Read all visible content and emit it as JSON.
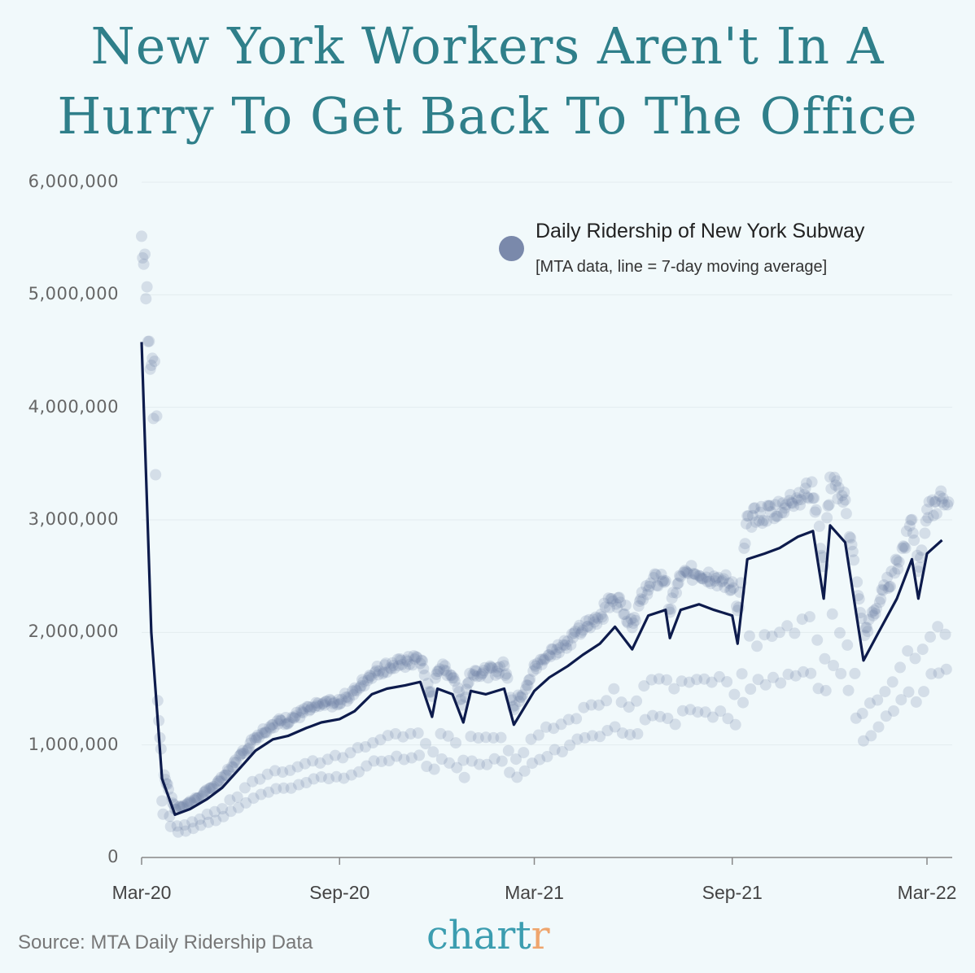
{
  "title": "New York Workers Aren't In A Hurry To Get Back To The Office",
  "title_lines": [
    "New York Workers Aren't In A",
    "Hurry To Get Back To The Office"
  ],
  "legend": {
    "title": "Daily Ridership of New York Subway",
    "subtitle": "[MTA data, line = 7-day moving average]",
    "marker_color": "#7a89ab"
  },
  "footer": {
    "source": "Source: MTA Daily Ridership Data",
    "brand_main": "chart",
    "brand_accent": "r"
  },
  "colors": {
    "title": "#2f7f8a",
    "line": "#0d1b4c",
    "dots": "#6f7fa6",
    "background": "#f1f9fb",
    "brand": "#3c9db0",
    "brand_accent": "#efa56d"
  },
  "chart_data": {
    "type": "line",
    "title": "New York Workers Aren't In A Hurry To Get Back To The Office",
    "xlabel": "",
    "ylabel": "",
    "ylim": [
      0,
      6000000
    ],
    "yticks": [
      "0",
      "1,000,000",
      "2,000,000",
      "3,000,000",
      "4,000,000",
      "5,000,000",
      "6,000,000"
    ],
    "xticks": [
      "Mar-20",
      "Sep-20",
      "Mar-21",
      "Sep-21",
      "Mar-22"
    ],
    "grid": "horizontal",
    "legend_position": "top-right",
    "series": [
      {
        "name": "7-day moving average",
        "style": "line",
        "x": [
          "2020-03-01",
          "2020-03-10",
          "2020-03-20",
          "2020-04-01",
          "2020-04-15",
          "2020-05-01",
          "2020-05-15",
          "2020-06-01",
          "2020-06-15",
          "2020-07-01",
          "2020-07-15",
          "2020-08-01",
          "2020-08-15",
          "2020-09-01",
          "2020-09-15",
          "2020-10-01",
          "2020-10-15",
          "2020-11-01",
          "2020-11-15",
          "2020-11-26",
          "2020-12-01",
          "2020-12-15",
          "2020-12-25",
          "2021-01-01",
          "2021-01-15",
          "2021-02-01",
          "2021-02-10",
          "2021-03-01",
          "2021-03-15",
          "2021-04-01",
          "2021-04-15",
          "2021-05-01",
          "2021-05-15",
          "2021-05-31",
          "2021-06-15",
          "2021-07-01",
          "2021-07-05",
          "2021-07-15",
          "2021-08-01",
          "2021-08-15",
          "2021-09-01",
          "2021-09-06",
          "2021-09-15",
          "2021-10-01",
          "2021-10-15",
          "2021-11-01",
          "2021-11-15",
          "2021-11-25",
          "2021-12-01",
          "2021-12-15",
          "2022-01-01",
          "2022-01-15",
          "2022-02-01",
          "2022-02-15",
          "2022-02-21",
          "2022-03-01",
          "2022-03-15"
        ],
        "values": [
          4580000,
          2000000,
          700000,
          380000,
          430000,
          520000,
          620000,
          800000,
          950000,
          1050000,
          1080000,
          1150000,
          1200000,
          1230000,
          1300000,
          1450000,
          1500000,
          1530000,
          1560000,
          1250000,
          1500000,
          1450000,
          1200000,
          1480000,
          1450000,
          1500000,
          1180000,
          1480000,
          1600000,
          1700000,
          1800000,
          1900000,
          2050000,
          1850000,
          2150000,
          2200000,
          1950000,
          2200000,
          2250000,
          2200000,
          2150000,
          1900000,
          2650000,
          2700000,
          2750000,
          2850000,
          2900000,
          2300000,
          2950000,
          2800000,
          1750000,
          2000000,
          2300000,
          2650000,
          2300000,
          2700000,
          2820000
        ]
      },
      {
        "name": "Daily Ridership of New York Subway",
        "style": "scatter",
        "note": "Daily points form bands: weekdays (upper), Saturdays (middle), Sundays/holidays (lower)",
        "weekday_band": {
          "start": 5500000,
          "trough": 430000,
          "sep_20": 1350000,
          "mar_21": 1800000,
          "sep_21": 2500000,
          "nov_21": 3400000,
          "mar_22": 3300000
        },
        "saturday_band": {
          "trough": 300000,
          "sep_20": 900000,
          "mar_21": 1050000,
          "sep_21": 1700000,
          "mar_22": 2000000
        },
        "sunday_band": {
          "trough": 230000,
          "sep_20": 750000,
          "mar_21": 850000,
          "sep_21": 1400000,
          "mar_22": 1650000
        }
      }
    ]
  }
}
